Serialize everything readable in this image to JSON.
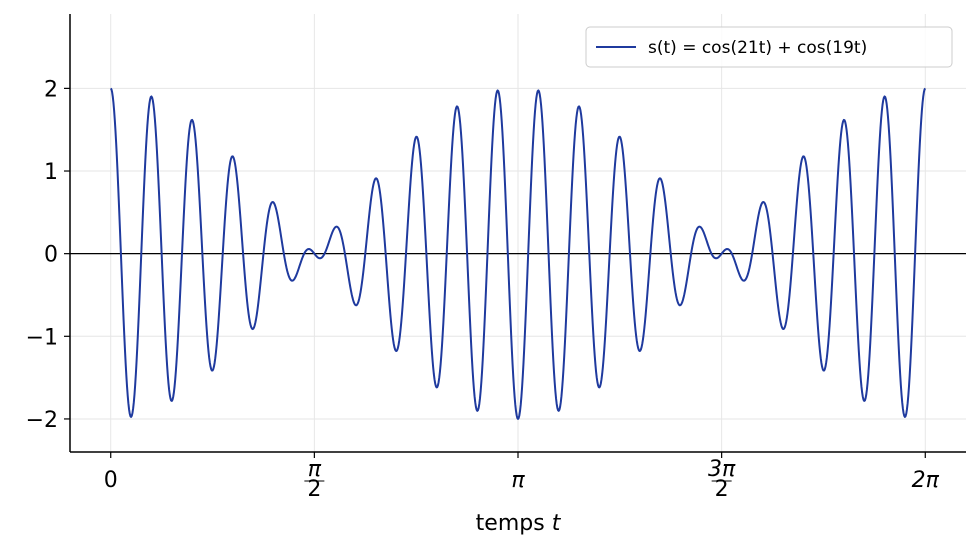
{
  "chart_data": {
    "type": "line",
    "formula": "cos(21t)+cos(19t)",
    "x_range": [
      0,
      6.283185307179586
    ],
    "samples": 1200,
    "xlim": [
      -0.314159,
      6.5973
    ],
    "ylim": [
      -2.4,
      2.9
    ],
    "xticks": [
      0,
      1.5707963,
      3.1415927,
      4.712389,
      6.2831853
    ],
    "xtick_labels": [
      "0",
      "π/2",
      "π",
      "3π/2",
      "2π"
    ],
    "yticks": [
      -2,
      -1,
      0,
      1,
      2
    ],
    "ytick_labels": [
      "−2",
      "−1",
      "0",
      "1",
      "2"
    ],
    "xlabel": "temps t",
    "ylabel": "",
    "title": "",
    "grid": true,
    "zero_line": true,
    "legend_position": "top-right",
    "series": [
      {
        "name": "s(t) = cos(21t) + cos(19t)",
        "color": "#1f3a9e"
      }
    ]
  }
}
